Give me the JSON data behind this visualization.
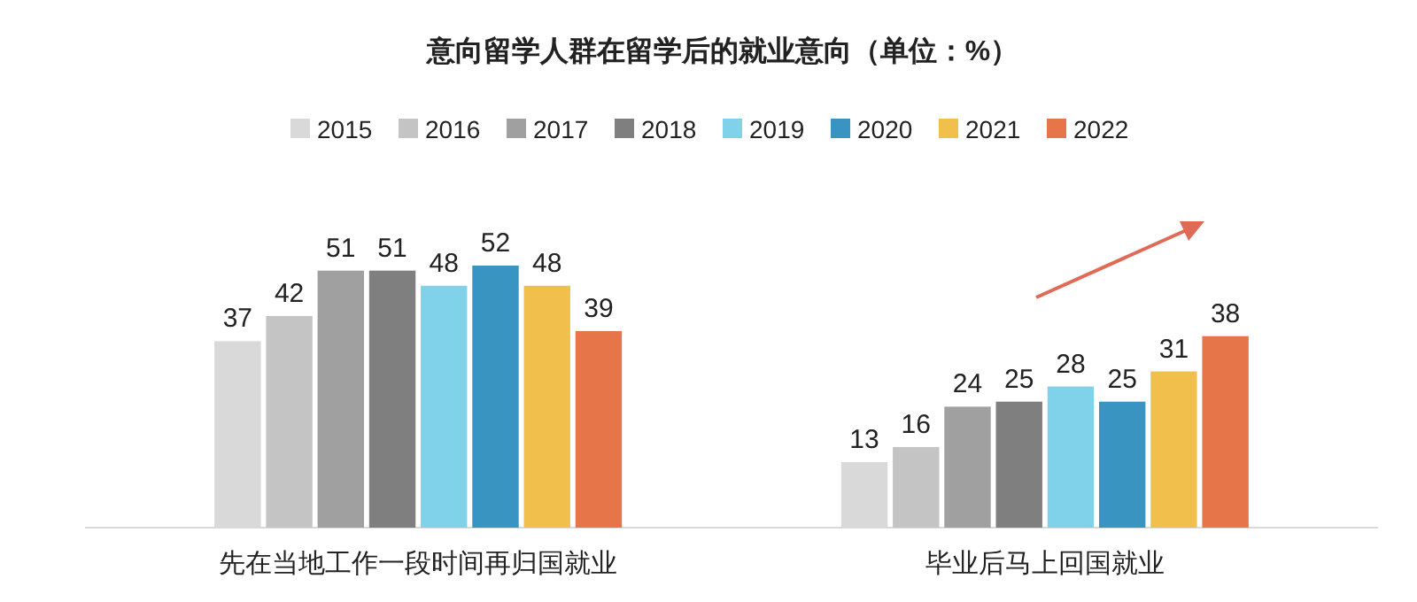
{
  "chart_data": {
    "type": "bar",
    "title": "意向留学人群在留学后的就业意向（单位：%）",
    "categories": [
      "先在当地工作一段时间再归国就业",
      "毕业后马上回国就业"
    ],
    "series": [
      {
        "name": "2015",
        "color": "#d9d9d9",
        "values": [
          37,
          13
        ]
      },
      {
        "name": "2016",
        "color": "#c4c4c4",
        "values": [
          42,
          16
        ]
      },
      {
        "name": "2017",
        "color": "#a0a0a0",
        "values": [
          51,
          24
        ]
      },
      {
        "name": "2018",
        "color": "#7f7f7f",
        "values": [
          51,
          25
        ]
      },
      {
        "name": "2019",
        "color": "#7fd2ea",
        "values": [
          48,
          28
        ]
      },
      {
        "name": "2020",
        "color": "#3a94c2",
        "values": [
          52,
          25
        ]
      },
      {
        "name": "2021",
        "color": "#f1c04c",
        "values": [
          48,
          31
        ]
      },
      {
        "name": "2022",
        "color": "#e6764a",
        "values": [
          39,
          38
        ]
      }
    ],
    "data_labels": true,
    "legend": "top"
  }
}
